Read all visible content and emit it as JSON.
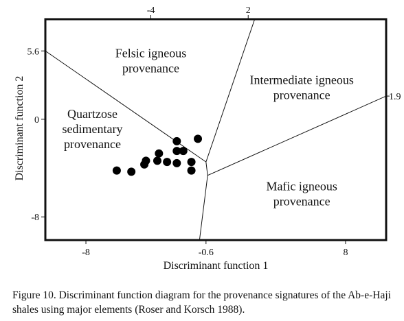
{
  "chart_data": {
    "type": "scatter",
    "xlabel": "Discriminant function 1",
    "ylabel": "Discriminant function 2",
    "xlim": [
      -10.5,
      10.5
    ],
    "ylim": [
      -9.9,
      8.2
    ],
    "x_ticks_bottom": [
      {
        "value": -8,
        "label": "-8"
      },
      {
        "value": -0.6,
        "label": "-0.6"
      },
      {
        "value": 8,
        "label": "8"
      }
    ],
    "x_ticks_top": [
      {
        "value": -4,
        "label": "-4"
      },
      {
        "value": 2,
        "label": "2"
      }
    ],
    "y_ticks_left": [
      {
        "value": 5.6,
        "label": "5.6"
      },
      {
        "value": 0,
        "label": "0"
      },
      {
        "value": -8,
        "label": "-8"
      }
    ],
    "y_ticks_right": [
      {
        "value": 1.9,
        "label": "1.9"
      }
    ],
    "region_labels": [
      {
        "lines": [
          "Felsic igneous",
          "provenance"
        ],
        "x": -4.0,
        "y": 4.8
      },
      {
        "lines": [
          "Intermediate igneous",
          "provenance"
        ],
        "x": 5.3,
        "y": 2.6
      },
      {
        "lines": [
          "Quartzose",
          "sedimentary",
          "provenance"
        ],
        "x": -7.6,
        "y": -0.8
      },
      {
        "lines": [
          "Mafic igneous",
          "provenance"
        ],
        "x": 5.3,
        "y": -6.1
      }
    ],
    "boundaries": [
      {
        "x": [
          -10.5,
          -0.6
        ],
        "y": [
          5.6,
          -3.5
        ]
      },
      {
        "x": [
          -0.6,
          2.4
        ],
        "y": [
          -3.5,
          8.2
        ]
      },
      {
        "x": [
          -0.6,
          -0.5
        ],
        "y": [
          -3.5,
          -4.6
        ]
      },
      {
        "x": [
          -0.5,
          10.5
        ],
        "y": [
          -4.6,
          1.9
        ]
      },
      {
        "x": [
          -0.5,
          -1.0
        ],
        "y": [
          -4.6,
          -9.9
        ]
      }
    ],
    "series": [
      {
        "color": "#000000",
        "points": [
          {
            "x": -1.1,
            "y": -1.6
          },
          {
            "x": -2.4,
            "y": -1.8
          },
          {
            "x": -2.0,
            "y": -2.6
          },
          {
            "x": -2.4,
            "y": -2.6
          },
          {
            "x": -3.5,
            "y": -2.8
          },
          {
            "x": -3.6,
            "y": -3.4
          },
          {
            "x": -3.0,
            "y": -3.5
          },
          {
            "x": -4.3,
            "y": -3.4
          },
          {
            "x": -4.4,
            "y": -3.7
          },
          {
            "x": -2.4,
            "y": -3.6
          },
          {
            "x": -1.5,
            "y": -3.5
          },
          {
            "x": -1.5,
            "y": -4.2
          },
          {
            "x": -5.2,
            "y": -4.3
          },
          {
            "x": -6.1,
            "y": -4.2
          }
        ]
      }
    ]
  },
  "caption": "Figure 10. Discriminant function diagram for the provenance signatures of the Ab-e-Haji shales using major elements (Roser and Korsch 1988)."
}
